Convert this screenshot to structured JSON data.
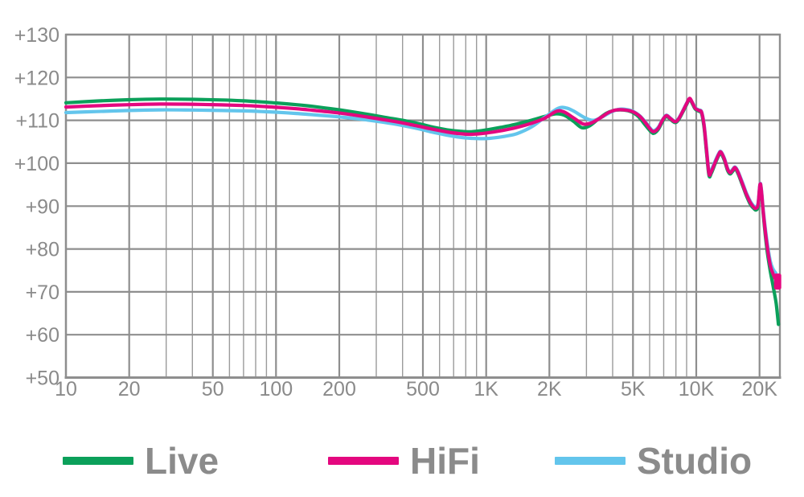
{
  "chart_data": {
    "type": "line",
    "title": "",
    "x_axis": {
      "scale": "log",
      "min": 10,
      "max": 25000,
      "unit": "Hz",
      "major_ticks": [
        {
          "value": 10,
          "label": "10"
        },
        {
          "value": 20,
          "label": "20"
        },
        {
          "value": 50,
          "label": "50"
        },
        {
          "value": 100,
          "label": "100"
        },
        {
          "value": 200,
          "label": "200"
        },
        {
          "value": 500,
          "label": "500"
        },
        {
          "value": 1000,
          "label": "1K"
        },
        {
          "value": 2000,
          "label": "2K"
        },
        {
          "value": 5000,
          "label": "5K"
        },
        {
          "value": 10000,
          "label": "10K"
        },
        {
          "value": 20000,
          "label": "20K"
        }
      ],
      "minor_gridlines": [
        30,
        40,
        60,
        70,
        80,
        90,
        300,
        400,
        600,
        700,
        800,
        900,
        3000,
        4000,
        6000,
        7000,
        8000,
        9000
      ]
    },
    "y_axis": {
      "min": 50,
      "max": 130,
      "step": 10,
      "unit": "dB",
      "ticks": [
        {
          "value": 130,
          "label": "+130"
        },
        {
          "value": 120,
          "label": "+120"
        },
        {
          "value": 110,
          "label": "+110"
        },
        {
          "value": 100,
          "label": "+100"
        },
        {
          "value": 90,
          "label": "+90"
        },
        {
          "value": 80,
          "label": "+80"
        },
        {
          "value": 70,
          "label": "+70"
        },
        {
          "value": 60,
          "label": "+60"
        },
        {
          "value": 50,
          "label": "+50"
        }
      ]
    },
    "grid": {
      "major_color": "#8e8e8e",
      "minor_color": "#9b9b9b",
      "label_color": "#8a8a8a",
      "background": "#ffffff"
    },
    "legend": {
      "position": "bottom"
    },
    "draw_order": [
      0,
      2,
      1
    ],
    "series": [
      {
        "name": "Live",
        "color": "#0ba05a",
        "points": [
          [
            10,
            114.1
          ],
          [
            14,
            114.5
          ],
          [
            20,
            114.8
          ],
          [
            28,
            114.95
          ],
          [
            40,
            114.9
          ],
          [
            55,
            114.75
          ],
          [
            70,
            114.55
          ],
          [
            85,
            114.3
          ],
          [
            100,
            114.05
          ],
          [
            125,
            113.65
          ],
          [
            150,
            113.25
          ],
          [
            180,
            112.75
          ],
          [
            220,
            112.15
          ],
          [
            270,
            111.45
          ],
          [
            330,
            110.7
          ],
          [
            400,
            110.0
          ],
          [
            480,
            109.2
          ],
          [
            560,
            108.4
          ],
          [
            650,
            107.8
          ],
          [
            750,
            107.45
          ],
          [
            850,
            107.35
          ],
          [
            1000,
            107.75
          ],
          [
            1200,
            108.45
          ],
          [
            1400,
            109.15
          ],
          [
            1650,
            110.05
          ],
          [
            1900,
            110.9
          ],
          [
            2130,
            111.5
          ],
          [
            2350,
            111.2
          ],
          [
            2600,
            109.8
          ],
          [
            2850,
            108.3
          ],
          [
            3100,
            108.7
          ],
          [
            3400,
            110.2
          ],
          [
            3750,
            111.7
          ],
          [
            4100,
            112.35
          ],
          [
            4500,
            112.4
          ],
          [
            4900,
            112.0
          ],
          [
            5300,
            110.9
          ],
          [
            5700,
            109.0
          ],
          [
            6100,
            107.3
          ],
          [
            6300,
            107.0
          ],
          [
            6600,
            107.9
          ],
          [
            6900,
            109.7
          ],
          [
            7200,
            110.9
          ],
          [
            7500,
            110.3
          ],
          [
            7900,
            109.5
          ],
          [
            8200,
            110.0
          ],
          [
            8600,
            111.8
          ],
          [
            9000,
            113.7
          ],
          [
            9300,
            114.9
          ],
          [
            9600,
            113.8
          ],
          [
            9900,
            112.6
          ],
          [
            10300,
            112.1
          ],
          [
            10600,
            111.6
          ],
          [
            10900,
            108.2
          ],
          [
            11200,
            102.2
          ],
          [
            11500,
            97.1
          ],
          [
            11800,
            97.7
          ],
          [
            12300,
            99.9
          ],
          [
            12800,
            101.8
          ],
          [
            13100,
            102.3
          ],
          [
            13600,
            100.7
          ],
          [
            14100,
            98.3
          ],
          [
            14500,
            97.5
          ],
          [
            14900,
            98.1
          ],
          [
            15300,
            98.7
          ],
          [
            15800,
            97.6
          ],
          [
            16500,
            95.2
          ],
          [
            17300,
            92.5
          ],
          [
            18100,
            90.4
          ],
          [
            18800,
            89.4
          ],
          [
            19300,
            89.1
          ],
          [
            19700,
            90.1
          ],
          [
            20100,
            94.7
          ],
          [
            20400,
            93.5
          ],
          [
            20900,
            87.4
          ],
          [
            21700,
            79.9
          ],
          [
            22500,
            74.9
          ],
          [
            23300,
            70.9
          ],
          [
            24000,
            67.3
          ],
          [
            24600,
            62.4
          ]
        ]
      },
      {
        "name": "HiFi",
        "color": "#e4077f",
        "end_cap": true,
        "points": [
          [
            10,
            113.1
          ],
          [
            14,
            113.4
          ],
          [
            20,
            113.65
          ],
          [
            28,
            113.8
          ],
          [
            40,
            113.75
          ],
          [
            55,
            113.6
          ],
          [
            70,
            113.45
          ],
          [
            85,
            113.25
          ],
          [
            100,
            113.05
          ],
          [
            125,
            112.7
          ],
          [
            150,
            112.35
          ],
          [
            180,
            111.95
          ],
          [
            220,
            111.45
          ],
          [
            270,
            110.8
          ],
          [
            330,
            110.1
          ],
          [
            400,
            109.4
          ],
          [
            480,
            108.6
          ],
          [
            560,
            107.9
          ],
          [
            650,
            107.3
          ],
          [
            750,
            106.9
          ],
          [
            850,
            106.75
          ],
          [
            1000,
            107.05
          ],
          [
            1200,
            107.65
          ],
          [
            1400,
            108.35
          ],
          [
            1650,
            109.35
          ],
          [
            1900,
            110.5
          ],
          [
            2160,
            112.1
          ],
          [
            2350,
            111.95
          ],
          [
            2600,
            110.6
          ],
          [
            2850,
            109.3
          ],
          [
            3000,
            109.1
          ],
          [
            3200,
            109.5
          ],
          [
            3500,
            110.6
          ],
          [
            3850,
            111.9
          ],
          [
            4200,
            112.45
          ],
          [
            4600,
            112.4
          ],
          [
            5000,
            112.0
          ],
          [
            5400,
            110.9
          ],
          [
            5800,
            109.1
          ],
          [
            6100,
            107.7
          ],
          [
            6300,
            107.4
          ],
          [
            6600,
            108.2
          ],
          [
            6900,
            110.0
          ],
          [
            7200,
            111.1
          ],
          [
            7500,
            110.5
          ],
          [
            7900,
            109.7
          ],
          [
            8200,
            110.2
          ],
          [
            8600,
            112.0
          ],
          [
            9000,
            113.9
          ],
          [
            9300,
            115.1
          ],
          [
            9600,
            114.0
          ],
          [
            9900,
            112.8
          ],
          [
            10300,
            112.3
          ],
          [
            10600,
            111.9
          ],
          [
            10900,
            108.7
          ],
          [
            11200,
            102.8
          ],
          [
            11500,
            97.5
          ],
          [
            11800,
            98.1
          ],
          [
            12300,
            100.2
          ],
          [
            12800,
            102.1
          ],
          [
            13100,
            102.6
          ],
          [
            13600,
            101.0
          ],
          [
            14100,
            98.6
          ],
          [
            14500,
            97.8
          ],
          [
            14900,
            98.4
          ],
          [
            15300,
            99.0
          ],
          [
            15800,
            97.9
          ],
          [
            16500,
            95.5
          ],
          [
            17300,
            92.8
          ],
          [
            18100,
            90.8
          ],
          [
            18800,
            89.7
          ],
          [
            19300,
            89.5
          ],
          [
            19700,
            90.5
          ],
          [
            20100,
            95.0
          ],
          [
            20400,
            93.8
          ],
          [
            20900,
            87.9
          ],
          [
            21700,
            81.0
          ],
          [
            22500,
            76.2
          ],
          [
            23200,
            74.2
          ],
          [
            23900,
            72.8
          ],
          [
            24400,
            72.4
          ]
        ]
      },
      {
        "name": "Studio",
        "color": "#63c5ec",
        "points": [
          [
            10,
            111.8
          ],
          [
            14,
            112.05
          ],
          [
            20,
            112.3
          ],
          [
            28,
            112.45
          ],
          [
            40,
            112.4
          ],
          [
            55,
            112.3
          ],
          [
            70,
            112.2
          ],
          [
            85,
            112.05
          ],
          [
            100,
            111.9
          ],
          [
            125,
            111.6
          ],
          [
            150,
            111.3
          ],
          [
            180,
            111.0
          ],
          [
            220,
            110.6
          ],
          [
            270,
            110.1
          ],
          [
            330,
            109.5
          ],
          [
            400,
            108.8
          ],
          [
            480,
            108.0
          ],
          [
            560,
            107.2
          ],
          [
            650,
            106.55
          ],
          [
            750,
            106.05
          ],
          [
            850,
            105.8
          ],
          [
            1000,
            105.75
          ],
          [
            1200,
            106.2
          ],
          [
            1400,
            106.9
          ],
          [
            1650,
            108.5
          ],
          [
            1900,
            110.7
          ],
          [
            2200,
            112.8
          ],
          [
            2400,
            112.9
          ],
          [
            2600,
            112.2
          ],
          [
            2950,
            110.6
          ],
          [
            3250,
            110.0
          ],
          [
            3600,
            110.9
          ],
          [
            3950,
            112.0
          ],
          [
            4300,
            112.6
          ],
          [
            4700,
            112.5
          ],
          [
            5000,
            112.1
          ],
          [
            5400,
            111.0
          ],
          [
            5800,
            109.3
          ],
          [
            6100,
            107.9
          ],
          [
            6300,
            107.6
          ],
          [
            6600,
            108.4
          ],
          [
            6900,
            110.1
          ],
          [
            7200,
            111.2
          ],
          [
            7500,
            110.6
          ],
          [
            7900,
            109.8
          ],
          [
            8200,
            110.3
          ],
          [
            8600,
            112.1
          ],
          [
            9000,
            114.0
          ],
          [
            9300,
            115.0
          ],
          [
            9600,
            114.1
          ],
          [
            9900,
            112.9
          ],
          [
            10300,
            112.4
          ],
          [
            10600,
            112.0
          ],
          [
            10900,
            109.0
          ],
          [
            11200,
            103.2
          ],
          [
            11500,
            97.9
          ],
          [
            11800,
            98.5
          ],
          [
            12300,
            100.5
          ],
          [
            12800,
            102.3
          ],
          [
            13100,
            102.7
          ],
          [
            13600,
            101.2
          ],
          [
            14100,
            98.8
          ],
          [
            14500,
            98.0
          ],
          [
            14900,
            98.6
          ],
          [
            15300,
            99.1
          ],
          [
            15800,
            98.1
          ],
          [
            16500,
            95.8
          ],
          [
            17300,
            93.1
          ],
          [
            18100,
            91.1
          ],
          [
            18800,
            90.0
          ],
          [
            19300,
            89.8
          ],
          [
            19700,
            90.8
          ],
          [
            20100,
            95.1
          ],
          [
            20400,
            94.0
          ],
          [
            20900,
            88.5
          ],
          [
            21700,
            81.9
          ],
          [
            22500,
            77.2
          ],
          [
            23200,
            75.3
          ],
          [
            23900,
            74.4
          ]
        ]
      }
    ]
  }
}
